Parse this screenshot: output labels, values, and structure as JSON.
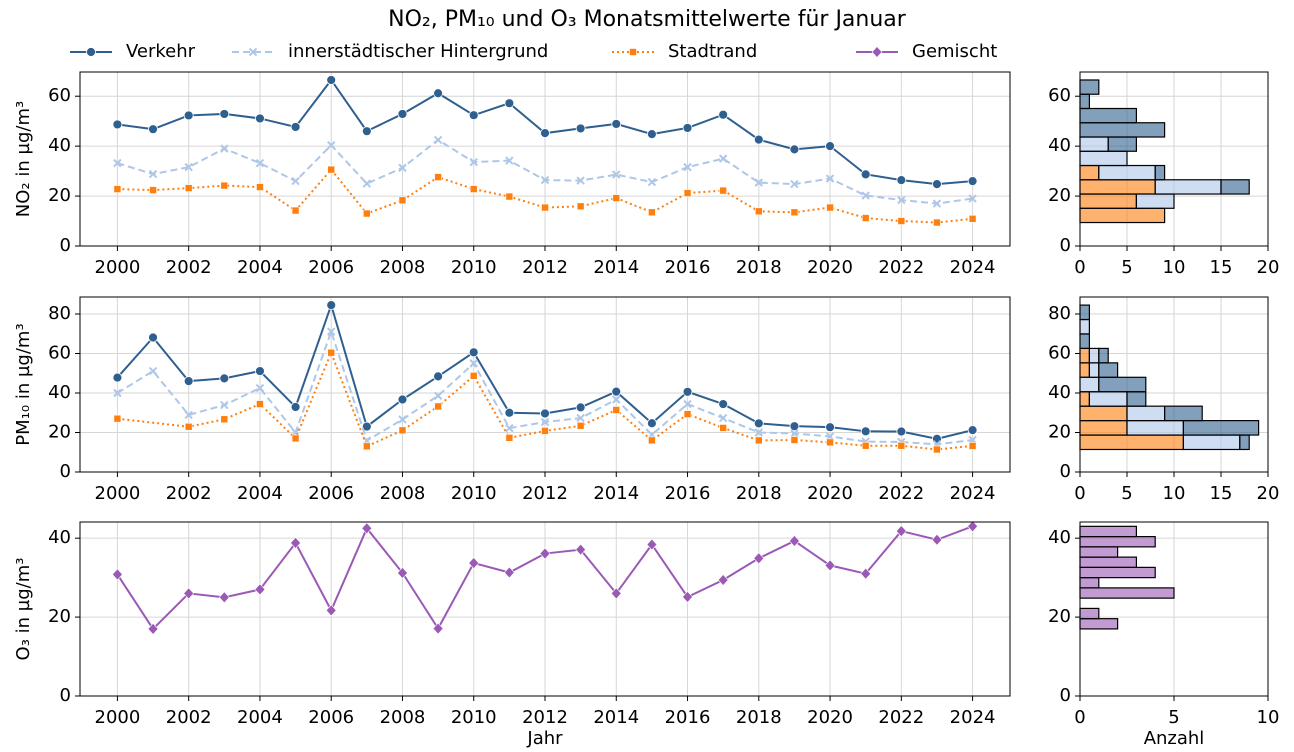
{
  "chart_data": [
    {
      "type": "line",
      "title": "NO₂, PM₁₀ und O₃ Monatsmittelwerte für Januar",
      "ylabel": "NO₂ in µg/m³",
      "x": [
        2000,
        2001,
        2002,
        2003,
        2004,
        2005,
        2006,
        2007,
        2008,
        2009,
        2010,
        2011,
        2012,
        2013,
        2014,
        2015,
        2016,
        2017,
        2018,
        2019,
        2020,
        2021,
        2022,
        2023,
        2024
      ],
      "xlim": [
        1998.95,
        2025.05
      ],
      "xticks": [
        2000,
        2002,
        2004,
        2006,
        2008,
        2010,
        2012,
        2014,
        2016,
        2018,
        2020,
        2022,
        2024
      ],
      "ylim": [
        0,
        69.7
      ],
      "yticks": [
        0,
        20,
        40,
        60
      ],
      "grid": true,
      "series": [
        {
          "name": "Verkehr",
          "color": "#2f5f8f",
          "marker": "circle",
          "linestyle": "solid",
          "values": [
            48.7,
            46.8,
            52.3,
            52.9,
            51.1,
            47.7,
            66.5,
            46.0,
            52.9,
            61.2,
            52.4,
            57.2,
            45.2,
            47.1,
            48.9,
            44.8,
            47.3,
            52.6,
            42.6,
            38.7,
            40.0,
            28.7,
            26.4,
            24.8,
            26.0
          ]
        },
        {
          "name": "innerstädtischer Hintergrund",
          "color": "#aec7e8",
          "marker": "x",
          "linestyle": "dashed",
          "values": [
            33.2,
            28.8,
            31.6,
            39.0,
            33.2,
            26.0,
            40.4,
            25.0,
            31.3,
            42.5,
            33.6,
            34.2,
            26.4,
            26.2,
            28.6,
            25.6,
            31.6,
            35.0,
            25.4,
            24.8,
            27.0,
            20.2,
            18.4,
            17.0,
            19.0
          ]
        },
        {
          "name": "Stadtrand",
          "color": "#ff7f0e",
          "marker": "square",
          "linestyle": "dotted",
          "values": [
            22.8,
            22.4,
            23.2,
            24.2,
            23.6,
            14.2,
            30.6,
            13.0,
            18.3,
            27.6,
            22.8,
            19.8,
            15.4,
            15.9,
            19.2,
            13.5,
            21.2,
            22.2,
            13.9,
            13.5,
            15.4,
            11.2,
            10.0,
            9.4,
            10.9
          ]
        }
      ]
    },
    {
      "type": "hist",
      "orientation": "horizontal",
      "stacked": true,
      "bins": [
        9.4,
        15.11,
        20.82,
        26.53,
        32.24,
        37.95,
        43.66,
        49.37,
        55.08,
        60.79,
        66.5
      ],
      "xlim": [
        0,
        20
      ],
      "xticks": [
        0,
        5,
        10,
        15,
        20
      ],
      "ylim": [
        0,
        69.7
      ],
      "yticks": [
        0,
        20,
        40,
        60
      ],
      "grid": true,
      "series": [
        {
          "color": "#ff7f0e",
          "counts": [
            9,
            6,
            8,
            2,
            0,
            0,
            0,
            0,
            0,
            0
          ]
        },
        {
          "color": "#aec7e8",
          "counts": [
            0,
            4,
            7,
            6,
            5,
            3,
            0,
            0,
            0,
            0
          ]
        },
        {
          "color": "#2f5f8f",
          "counts": [
            0,
            0,
            3,
            1,
            0,
            3,
            9,
            6,
            1,
            2
          ]
        }
      ]
    },
    {
      "type": "line",
      "ylabel": "PM₁₀ in µg/m³",
      "x": [
        2000,
        2001,
        2002,
        2003,
        2004,
        2005,
        2006,
        2007,
        2008,
        2009,
        2010,
        2011,
        2012,
        2013,
        2014,
        2015,
        2016,
        2017,
        2018,
        2019,
        2020,
        2021,
        2022,
        2023,
        2024
      ],
      "xlim": [
        1998.95,
        2025.05
      ],
      "xticks": [
        2000,
        2002,
        2004,
        2006,
        2008,
        2010,
        2012,
        2014,
        2016,
        2018,
        2020,
        2022,
        2024
      ],
      "ylim": [
        0,
        88.6
      ],
      "yticks": [
        0,
        20,
        40,
        60,
        80
      ],
      "grid": true,
      "series": [
        {
          "color": "#2f5f8f",
          "marker": "circle",
          "linestyle": "solid",
          "values": [
            47.8,
            68.1,
            46.0,
            47.4,
            51.1,
            32.9,
            84.5,
            23.0,
            36.7,
            48.4,
            60.6,
            30.0,
            29.6,
            32.7,
            40.7,
            24.7,
            40.6,
            34.4,
            24.6,
            23.2,
            22.7,
            20.6,
            20.5,
            16.8,
            21.2
          ]
        },
        {
          "color": "#aec7e8",
          "marker": "x",
          "linestyle": "dashed",
          "values": [
            40.0,
            51.1,
            28.9,
            33.9,
            42.5,
            20.0,
            71.1,
            15.9,
            26.6,
            38.6,
            55.0,
            22.2,
            25.3,
            27.3,
            36.7,
            18.9,
            34.4,
            27.3,
            20.0,
            19.5,
            18.0,
            15.4,
            15.2,
            14.0,
            16.2
          ]
        },
        {
          "color": "#ff7f0e",
          "marker": "square",
          "linestyle": "dotted",
          "x": [
            2000,
            2002,
            2003,
            2004,
            2005,
            2006,
            2007,
            2008,
            2009,
            2010,
            2011,
            2012,
            2013,
            2014,
            2015,
            2016,
            2017,
            2018,
            2019,
            2020,
            2021,
            2022,
            2023,
            2024
          ],
          "values": [
            27.0,
            22.9,
            26.7,
            34.4,
            17.0,
            60.4,
            13.0,
            21.1,
            33.2,
            48.7,
            17.3,
            20.8,
            23.4,
            31.4,
            16.0,
            29.3,
            22.3,
            16.0,
            16.2,
            15.0,
            13.3,
            13.3,
            11.4,
            13.2
          ]
        }
      ]
    },
    {
      "type": "hist",
      "orientation": "horizontal",
      "stacked": true,
      "bins": [
        11.4,
        18.71,
        26.02,
        33.33,
        40.64,
        47.95,
        55.26,
        62.57,
        69.88,
        77.19,
        84.5
      ],
      "xlim": [
        0,
        20
      ],
      "xticks": [
        0,
        5,
        10,
        15,
        20
      ],
      "ylim": [
        0,
        88.6
      ],
      "yticks": [
        0,
        20,
        40,
        60,
        80
      ],
      "grid": true,
      "series": [
        {
          "color": "#ff7f0e",
          "counts": [
            11,
            5,
            5,
            1,
            0,
            1,
            1,
            0,
            0,
            0
          ]
        },
        {
          "color": "#aec7e8",
          "counts": [
            6,
            6,
            4,
            4,
            2,
            1,
            1,
            0,
            1,
            0
          ]
        },
        {
          "color": "#2f5f8f",
          "counts": [
            1,
            8,
            4,
            2,
            5,
            2,
            1,
            1,
            0,
            1
          ]
        }
      ]
    },
    {
      "type": "line",
      "ylabel": "O₃ in µg/m³",
      "xlabel": "Jahr",
      "x": [
        2000,
        2001,
        2002,
        2003,
        2004,
        2005,
        2006,
        2007,
        2008,
        2009,
        2010,
        2011,
        2012,
        2013,
        2014,
        2015,
        2016,
        2017,
        2018,
        2019,
        2020,
        2021,
        2022,
        2023,
        2024
      ],
      "xlim": [
        1998.95,
        2025.05
      ],
      "xticks": [
        2000,
        2002,
        2004,
        2006,
        2008,
        2010,
        2012,
        2014,
        2016,
        2018,
        2020,
        2022,
        2024
      ],
      "ylim": [
        0,
        44.1
      ],
      "yticks": [
        0,
        20,
        40
      ],
      "grid": true,
      "series": [
        {
          "name": "Gemischt",
          "color": "#9b59b6",
          "marker": "diamond",
          "linestyle": "solid",
          "values": [
            30.8,
            17.0,
            26.0,
            25.0,
            27.0,
            38.8,
            21.7,
            42.5,
            31.2,
            17.1,
            33.7,
            31.3,
            36.1,
            37.1,
            26.0,
            38.4,
            25.1,
            29.4,
            34.9,
            39.3,
            33.1,
            31.0,
            41.8,
            39.6,
            43.0
          ]
        }
      ]
    },
    {
      "type": "hist",
      "orientation": "horizontal",
      "xlabel": "Anzahl",
      "bins": [
        17,
        19.6,
        22.2,
        24.8,
        27.4,
        30,
        32.6,
        35.2,
        37.8,
        40.4,
        43
      ],
      "xlim": [
        0,
        10
      ],
      "xticks": [
        0,
        5,
        10
      ],
      "ylim": [
        0,
        44.1
      ],
      "yticks": [
        0,
        20,
        40
      ],
      "grid": true,
      "series": [
        {
          "color": "#9b59b6",
          "counts": [
            2,
            1,
            0,
            5,
            1,
            4,
            3,
            2,
            4,
            3
          ]
        }
      ]
    }
  ]
}
